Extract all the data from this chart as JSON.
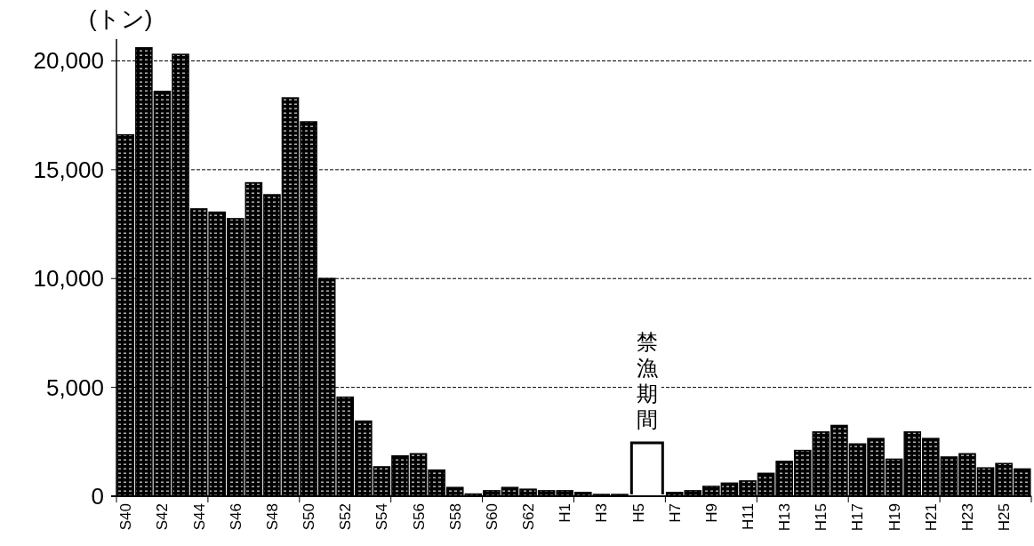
{
  "chart_data": {
    "type": "bar",
    "ylabel": "(トン)",
    "categories": [
      "S40",
      null,
      "S42",
      null,
      "S44",
      null,
      "S46",
      null,
      "S48",
      null,
      "S50",
      null,
      "S52",
      null,
      "S54",
      null,
      "S56",
      null,
      "S58",
      null,
      "S60",
      null,
      "S62",
      null,
      "H1",
      null,
      "H3",
      null,
      "H5",
      null,
      "H7",
      null,
      "H9",
      null,
      "H11",
      null,
      "H13",
      null,
      "H15",
      null,
      "H17",
      null,
      "H19",
      null,
      "H21",
      null,
      "H23",
      null,
      "H25",
      null
    ],
    "values": [
      16600,
      20600,
      18600,
      20300,
      13200,
      13050,
      12750,
      14400,
      13850,
      18300,
      17200,
      10000,
      4550,
      3450,
      1350,
      1850,
      1950,
      1200,
      400,
      100,
      250,
      400,
      320,
      250,
      250,
      170,
      80,
      80,
      null,
      null,
      170,
      250,
      450,
      600,
      700,
      1050,
      1600,
      2100,
      2950,
      3250,
      2400,
      2650,
      1700,
      2950,
      2650,
      1800,
      1950,
      1300,
      1500,
      1250
    ],
    "color": "#000000",
    "ylim": [
      0,
      21000
    ],
    "yticks": [
      0,
      {
        "value": 5000,
        "label": "5,000"
      },
      {
        "value": 10000,
        "label": "10,000"
      },
      {
        "value": 15000,
        "label": "15,000"
      },
      {
        "value": 20000,
        "label": "20,000"
      }
    ],
    "grid": "y",
    "annotations": [
      "禁漁期間"
    ]
  }
}
